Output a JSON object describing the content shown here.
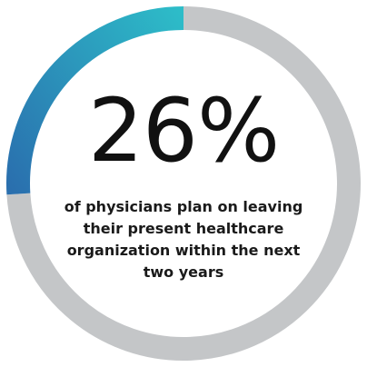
{
  "chart_data": {
    "type": "pie",
    "style": "donut-gauge",
    "values": [
      26,
      74
    ],
    "labels": [
      "",
      ""
    ],
    "value_label": "26%",
    "caption_lines": [
      "of physicians plan on leaving",
      "their present healthcare",
      "organization within the next",
      "two years"
    ],
    "colors": {
      "highlight_start": "#2ed3d0",
      "highlight_end": "#2a6fae",
      "track": "#c4c6c8",
      "text": "#111111"
    }
  }
}
